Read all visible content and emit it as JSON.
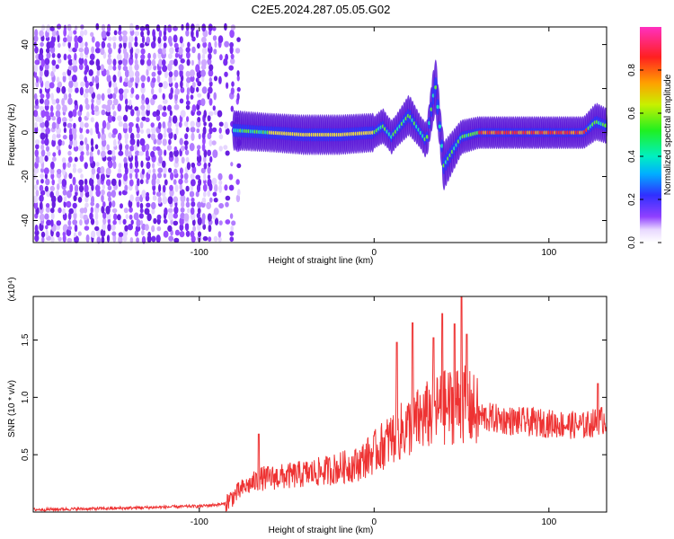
{
  "title": "C2E5.2024.287.05.05.G02",
  "chart_data": [
    {
      "type": "heatmap",
      "xlabel": "Height of straight line (km)",
      "ylabel": "Frequency (Hz)",
      "xlim": [
        -195,
        133
      ],
      "ylim": [
        -50,
        48
      ],
      "xticks": [
        -100,
        0,
        100
      ],
      "yticks": [
        -40,
        -20,
        0,
        20,
        40
      ],
      "colorbar": {
        "label": "Normalized spectral amplitude",
        "range": [
          0.0,
          1.0
        ],
        "ticks": [
          0.0,
          0.2,
          0.4,
          0.6,
          0.8
        ]
      },
      "grid": false,
      "noise_region_x": [
        -195,
        -80
      ],
      "signal_track": [
        {
          "x": -80,
          "f": 1
        },
        {
          "x": -60,
          "f": 0
        },
        {
          "x": -40,
          "f": -1
        },
        {
          "x": -20,
          "f": -1
        },
        {
          "x": 0,
          "f": 0
        },
        {
          "x": 5,
          "f": 3
        },
        {
          "x": 10,
          "f": -2
        },
        {
          "x": 20,
          "f": 8
        },
        {
          "x": 30,
          "f": -4
        },
        {
          "x": 35,
          "f": 22
        },
        {
          "x": 40,
          "f": -15
        },
        {
          "x": 50,
          "f": -2
        },
        {
          "x": 60,
          "f": 0
        },
        {
          "x": 80,
          "f": 0
        },
        {
          "x": 100,
          "f": 0
        },
        {
          "x": 120,
          "f": 0
        },
        {
          "x": 127,
          "f": 5
        },
        {
          "x": 133,
          "f": 3
        }
      ]
    },
    {
      "type": "line",
      "xlabel": "Height of straight line (km)",
      "ylabel": "SNR (10 * v/v)",
      "y_scale_label": "(x10⁴)",
      "xlim": [
        -195,
        133
      ],
      "ylim": [
        0,
        1.88
      ],
      "xticks": [
        -100,
        0,
        100
      ],
      "yticks": [
        0.5,
        1.0,
        1.5
      ],
      "ytick_labels": [
        "0.5",
        "1.0",
        "1.5"
      ],
      "grid": false,
      "series": [
        {
          "color": "#ee3333",
          "envelope": [
            {
              "x": -195,
              "y": 0.02
            },
            {
              "x": -150,
              "y": 0.03
            },
            {
              "x": -100,
              "y": 0.05
            },
            {
              "x": -85,
              "y": 0.07
            },
            {
              "x": -75,
              "y": 0.2
            },
            {
              "x": -65,
              "y": 0.28
            },
            {
              "x": -50,
              "y": 0.3
            },
            {
              "x": -30,
              "y": 0.34
            },
            {
              "x": -10,
              "y": 0.4
            },
            {
              "x": 0,
              "y": 0.5
            },
            {
              "x": 10,
              "y": 0.62
            },
            {
              "x": 20,
              "y": 0.72
            },
            {
              "x": 35,
              "y": 0.85
            },
            {
              "x": 50,
              "y": 0.92
            },
            {
              "x": 60,
              "y": 0.82
            },
            {
              "x": 80,
              "y": 0.78
            },
            {
              "x": 100,
              "y": 0.76
            },
            {
              "x": 120,
              "y": 0.74
            },
            {
              "x": 133,
              "y": 0.8
            }
          ],
          "peaks": [
            {
              "x": -66,
              "y": 0.68
            },
            {
              "x": 13,
              "y": 1.48
            },
            {
              "x": 22,
              "y": 1.65
            },
            {
              "x": 34,
              "y": 1.52
            },
            {
              "x": 39,
              "y": 1.73
            },
            {
              "x": 46,
              "y": 1.64
            },
            {
              "x": 50,
              "y": 1.9
            },
            {
              "x": 53,
              "y": 1.55
            },
            {
              "x": 128,
              "y": 1.12
            }
          ]
        }
      ]
    }
  ]
}
